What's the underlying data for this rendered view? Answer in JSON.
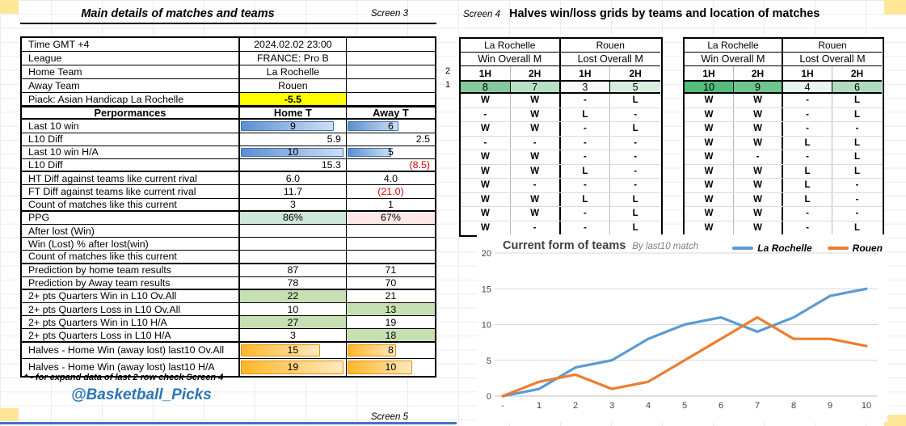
{
  "colors": {
    "accent_blue": "#2e75b6",
    "tan_cell": "#ffe699",
    "handicap_yellow": "#ffff00",
    "ppg_green": "#cfe7d8",
    "ppg_pink": "#fce8e6",
    "quarter_green": "#c6e0b4",
    "bar_blue": "#5b8fd0",
    "bar_orange": "#ffb628",
    "bottom_line_blue": "#4472c4"
  },
  "left": {
    "title": "Main details of matches and teams",
    "screen3": "Screen 3",
    "screen5": "Screen 5",
    "footnote": "* - for expand data of last 2 row check Screen 4",
    "handle": "@Basketball_Picks",
    "info_rows": [
      {
        "label": "Time  GMT +4",
        "value": "2024.02.02 23:00"
      },
      {
        "label": "League",
        "value": "FRANCE: Pro B"
      },
      {
        "label": "Home Team",
        "value": "La Rochelle"
      },
      {
        "label": "Away Team",
        "value": "Rouen"
      },
      {
        "label": "Piack: Asian Handicap La Rochelle",
        "value": "-5.5",
        "value_bg": "#ffff00",
        "bold": true
      }
    ],
    "perf_header": {
      "label": "Perpormances",
      "home": "Home T",
      "away": "Away T"
    },
    "perf_rows": [
      {
        "label": "Last 10  win",
        "type": "bar-blue",
        "home": {
          "text": "9",
          "pct": 88
        },
        "away": {
          "text": "6",
          "pct": 58
        }
      },
      {
        "label": "L10 Diff",
        "align": "right",
        "home": {
          "text": "5.9"
        },
        "away": {
          "text": "2.5"
        }
      },
      {
        "label": "Last 10  win H/A",
        "type": "bar-blue",
        "home": {
          "text": "10",
          "pct": 97
        },
        "away": {
          "text": "5",
          "pct": 50
        }
      },
      {
        "label": "L10 Diff",
        "align": "right",
        "home": {
          "text": "15.3"
        },
        "away": {
          "text": "(8.5)",
          "neg": true
        },
        "thick": true
      },
      {
        "label": "HT Diff against teams like current rival",
        "home": {
          "text": "6.0"
        },
        "away": {
          "text": "4.0"
        }
      },
      {
        "label": "FT Diff against teams like current rival",
        "home": {
          "text": "11.7"
        },
        "away": {
          "text": "(21.0)",
          "neg": true
        }
      },
      {
        "label": "Count of matches like this current",
        "home": {
          "text": "3"
        },
        "away": {
          "text": "1"
        },
        "thick": true
      },
      {
        "label": "PPG",
        "home": {
          "text": "86%",
          "bg": "#cfe7d8"
        },
        "away": {
          "text": "67%",
          "bg": "#fce8e6"
        }
      },
      {
        "label": "After lost (Win)",
        "home": {
          "text": ""
        },
        "away": {
          "text": ""
        }
      },
      {
        "label": "Win (Lost) % after lost(win)",
        "home": {
          "text": ""
        },
        "away": {
          "text": ""
        }
      },
      {
        "label": "Count of matches like this current",
        "home": {
          "text": ""
        },
        "away": {
          "text": ""
        },
        "thick": true
      },
      {
        "label": "Prediction by home team results",
        "home": {
          "text": "87"
        },
        "away": {
          "text": "71"
        }
      },
      {
        "label": "Prediction by Away team results",
        "home": {
          "text": "78"
        },
        "away": {
          "text": "70"
        },
        "thick": true
      },
      {
        "label": "2+ pts Quarters Win in L10 Ov.All",
        "home": {
          "text": "22",
          "bg": "#c6e0b4"
        },
        "away": {
          "text": "21"
        }
      },
      {
        "label": "2+ pts Quarters Loss in L10 Ov.All",
        "home": {
          "text": "10"
        },
        "away": {
          "text": "13",
          "bg": "#c6e0b4"
        }
      },
      {
        "label": "2+ pts Quarters Win in L10 H/A",
        "home": {
          "text": "27",
          "bg": "#c6e0b4"
        },
        "away": {
          "text": "19"
        }
      },
      {
        "label": "2+ pts Quarters Loss in L10 H/A",
        "home": {
          "text": "3"
        },
        "away": {
          "text": "18",
          "bg": "#c6e0b4"
        },
        "thick": true
      },
      {
        "label": "Halves - Home Win  (away lost) last10 Ov.All",
        "type": "bar-orange",
        "tall": true,
        "home": {
          "text": "15",
          "pct": 75
        },
        "away": {
          "text": "8",
          "pct": 55
        }
      },
      {
        "label": "Halves - Home Win  (away lost) last10 H/A",
        "type": "bar-orange",
        "tall": true,
        "home": {
          "text": "19",
          "pct": 97
        },
        "away": {
          "text": "10",
          "pct": 73
        }
      }
    ]
  },
  "grids": {
    "screen4": "Screen 4",
    "title": "Halves win/loss grids by teams and location of matches",
    "row_markers": [
      "2",
      "1"
    ],
    "tables": [
      {
        "teams": [
          "La Rochelle",
          "Rouen"
        ],
        "sections": [
          "Win Overall M",
          "Lost Overall M"
        ],
        "cols": [
          "1H",
          "2H",
          "1H",
          "2H"
        ],
        "totals": [
          {
            "text": "8",
            "bg": "#85c99c"
          },
          {
            "text": "7",
            "bg": "#b7dfc4"
          },
          {
            "text": "3",
            "bg": "#f7fbf8"
          },
          {
            "text": "5",
            "bg": "#d9eedf"
          }
        ],
        "rows": [
          [
            "W",
            "W",
            "-",
            "L"
          ],
          [
            "-",
            "W",
            "L",
            "-"
          ],
          [
            "W",
            "W",
            "-",
            "L"
          ],
          [
            "-",
            "-",
            "-",
            "-"
          ],
          [
            "W",
            "W",
            "-",
            "-"
          ],
          [
            "W",
            "W",
            "L",
            "-"
          ],
          [
            "W",
            "-",
            "-",
            "-"
          ],
          [
            "W",
            "W",
            "L",
            "L"
          ],
          [
            "W",
            "W",
            "-",
            "L"
          ],
          [
            "W",
            "-",
            "-",
            "L"
          ]
        ]
      },
      {
        "teams": [
          "La Rochelle",
          "Rouen"
        ],
        "sections": [
          "Win Overall M",
          "Lost Overall M"
        ],
        "cols": [
          "1H",
          "2H",
          "1H",
          "2H"
        ],
        "totals": [
          {
            "text": "10",
            "bg": "#57bb7d"
          },
          {
            "text": "9",
            "bg": "#70c48e"
          },
          {
            "text": "4",
            "bg": "#e9f5ee"
          },
          {
            "text": "6",
            "bg": "#aedcbd"
          }
        ],
        "rows": [
          [
            "W",
            "W",
            "-",
            "L"
          ],
          [
            "W",
            "W",
            "-",
            "L"
          ],
          [
            "W",
            "W",
            "-",
            "-"
          ],
          [
            "W",
            "W",
            "L",
            "L"
          ],
          [
            "W",
            "-",
            "-",
            "L"
          ],
          [
            "W",
            "W",
            "L",
            "L"
          ],
          [
            "W",
            "W",
            "L",
            "-"
          ],
          [
            "W",
            "W",
            "L",
            "-"
          ],
          [
            "W",
            "W",
            "-",
            "-"
          ],
          [
            "W",
            "W",
            "-",
            "L"
          ]
        ]
      }
    ]
  },
  "chart_data": {
    "type": "line",
    "title": "Current form of  teams",
    "subtitle": "By last10 match",
    "x_labels": [
      "-",
      "1",
      "2",
      "3",
      "4",
      "5",
      "6",
      "7",
      "8",
      "9",
      "10"
    ],
    "ylim": [
      0,
      20
    ],
    "yticks": [
      0,
      5,
      10,
      15,
      20
    ],
    "grid": true,
    "legend_position": "top-right",
    "series": [
      {
        "name": "La Rochelle",
        "color": "#5b9bd5",
        "values": [
          0,
          1,
          4,
          5,
          8,
          10,
          11,
          9,
          11,
          14,
          15
        ]
      },
      {
        "name": "Rouen",
        "color": "#ed7d31",
        "values": [
          0,
          2,
          3,
          1,
          2,
          5,
          8,
          11,
          8,
          8,
          7
        ]
      }
    ]
  }
}
